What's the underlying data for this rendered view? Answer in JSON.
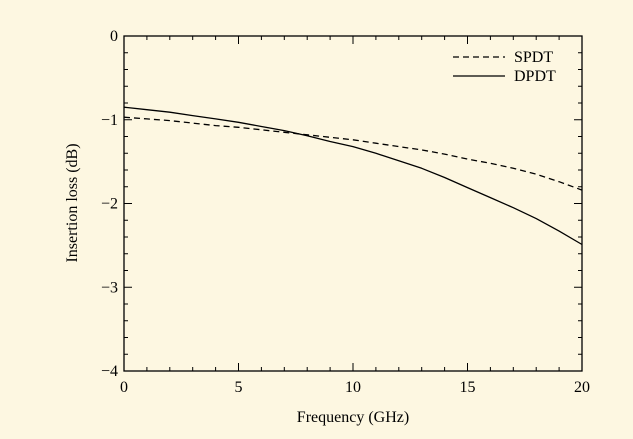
{
  "chart_data": {
    "type": "line",
    "xlabel": "Frequency (GHz)",
    "ylabel": "Insertion loss (dB)",
    "xlim": [
      0,
      20
    ],
    "ylim": [
      -4,
      0
    ],
    "x_ticks": [
      0,
      5,
      10,
      15,
      20
    ],
    "y_ticks": [
      0,
      -1,
      -2,
      -3,
      -4
    ],
    "x_tick_labels": [
      "0",
      "5",
      "10",
      "15",
      "20"
    ],
    "y_tick_labels": [
      "0",
      "−1",
      "−2",
      "−3",
      "−4"
    ],
    "grid": false,
    "legend_position": "top-right",
    "series": [
      {
        "name": "SPDT",
        "style": "dashed",
        "color": "#000000",
        "x": [
          0,
          1,
          2,
          3,
          4,
          5,
          6,
          7,
          8,
          9,
          10,
          11,
          12,
          13,
          14,
          15,
          16,
          17,
          18,
          19,
          20
        ],
        "y": [
          -0.97,
          -0.99,
          -1.01,
          -1.04,
          -1.07,
          -1.09,
          -1.12,
          -1.15,
          -1.18,
          -1.21,
          -1.24,
          -1.28,
          -1.32,
          -1.36,
          -1.41,
          -1.47,
          -1.52,
          -1.58,
          -1.65,
          -1.74,
          -1.84
        ]
      },
      {
        "name": "DPDT",
        "style": "solid",
        "color": "#000000",
        "x": [
          0,
          1,
          2,
          3,
          4,
          5,
          6,
          7,
          8,
          9,
          10,
          11,
          12,
          13,
          14,
          15,
          16,
          17,
          18,
          19,
          20
        ],
        "y": [
          -0.85,
          -0.88,
          -0.91,
          -0.95,
          -0.99,
          -1.03,
          -1.08,
          -1.13,
          -1.19,
          -1.26,
          -1.32,
          -1.4,
          -1.49,
          -1.58,
          -1.69,
          -1.81,
          -1.93,
          -2.05,
          -2.18,
          -2.33,
          -2.49
        ]
      }
    ]
  }
}
